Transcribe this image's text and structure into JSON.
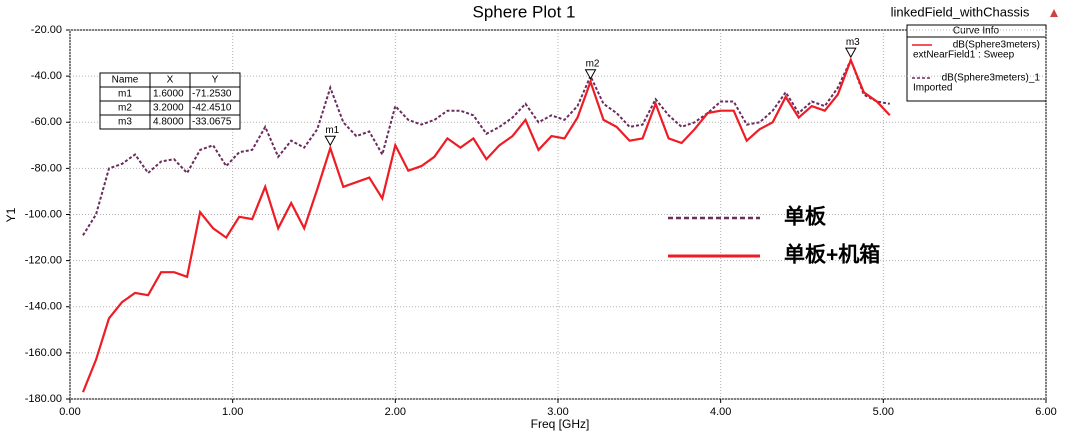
{
  "chart_data": {
    "type": "line",
    "title": "Sphere Plot 1",
    "window_label": "linkedField_withChassis",
    "x_label": "Freq [GHz]",
    "y_label": "Y1",
    "xlim": [
      0,
      6
    ],
    "ylim": [
      -180,
      -20
    ],
    "xticks": [
      {
        "value": 0,
        "label": "0.00"
      },
      {
        "value": 1,
        "label": "1.00"
      },
      {
        "value": 2,
        "label": "2.00"
      },
      {
        "value": 3,
        "label": "3.00"
      },
      {
        "value": 4,
        "label": "4.00"
      },
      {
        "value": 5,
        "label": "5.00"
      },
      {
        "value": 6,
        "label": "6.00"
      }
    ],
    "yticks": [
      {
        "value": -20,
        "label": "-20.00"
      },
      {
        "value": -40,
        "label": "-40.00"
      },
      {
        "value": -60,
        "label": "-60.00"
      },
      {
        "value": -80,
        "label": "-80.00"
      },
      {
        "value": -100,
        "label": "-100.00"
      },
      {
        "value": -120,
        "label": "-120.00"
      },
      {
        "value": -140,
        "label": "-140.00"
      },
      {
        "value": -160,
        "label": "-160.00"
      },
      {
        "value": -180,
        "label": "-180.00"
      }
    ],
    "grid": true,
    "x": [
      0.08,
      0.16,
      0.24,
      0.32,
      0.4,
      0.48,
      0.56,
      0.64,
      0.72,
      0.8,
      0.88,
      0.96,
      1.04,
      1.12,
      1.2,
      1.28,
      1.36,
      1.44,
      1.52,
      1.6,
      1.68,
      1.76,
      1.84,
      1.92,
      2.0,
      2.08,
      2.16,
      2.24,
      2.32,
      2.4,
      2.48,
      2.56,
      2.64,
      2.72,
      2.8,
      2.88,
      2.96,
      3.04,
      3.12,
      3.2,
      3.28,
      3.36,
      3.44,
      3.52,
      3.6,
      3.68,
      3.76,
      3.84,
      3.92,
      4.0,
      4.08,
      4.16,
      4.24,
      4.32,
      4.4,
      4.48,
      4.56,
      4.64,
      4.72,
      4.8,
      4.88,
      4.96,
      5.04
    ],
    "legend_title": "Curve Info",
    "series": [
      {
        "name": "dB(Sphere3meters)",
        "source": "extNearField1 : Sweep",
        "annotation": "单板+机箱",
        "color": "#ee1c24",
        "dashed": false,
        "values": [
          -177,
          -163,
          -145,
          -138,
          -134,
          -135,
          -125,
          -125,
          -127,
          -99,
          -106,
          -110,
          -101,
          -102,
          -88,
          -106,
          -95,
          -106,
          -89,
          -71.253,
          -88,
          -86,
          -84,
          -93,
          -70,
          -81,
          -79,
          -75,
          -67,
          -71,
          -67,
          -76,
          -70,
          -66,
          -59,
          -72,
          -66,
          -67,
          -58,
          -42.451,
          -59,
          -62,
          -68,
          -67,
          -52,
          -67,
          -69,
          -63,
          -56,
          -55,
          -55,
          -68,
          -63,
          -60,
          -49,
          -58,
          -53,
          -55,
          -48,
          -33.0675,
          -47,
          -51,
          -57
        ]
      },
      {
        "name": "dB(Sphere3meters)_1",
        "source": "Imported",
        "annotation": "单板",
        "color": "#6b2c5e",
        "dashed": true,
        "values": [
          -109,
          -100,
          -80,
          -78,
          -74,
          -82,
          -77,
          -76,
          -82,
          -72,
          -70,
          -79,
          -73,
          -72,
          -62,
          -75,
          -68,
          -71,
          -63,
          -45,
          -60,
          -66,
          -64,
          -74,
          -53,
          -59,
          -61,
          -59,
          -55,
          -55,
          -57,
          -65,
          -62,
          -58,
          -52,
          -60,
          -57,
          -59,
          -53,
          -40,
          -52,
          -56,
          -62,
          -61,
          -50,
          -57,
          -62,
          -60,
          -56,
          -51,
          -51,
          -61,
          -60,
          -55,
          -47,
          -56,
          -51,
          -53,
          -45,
          -33,
          -48,
          -51,
          -52
        ]
      }
    ],
    "marker_table_header": [
      "Name",
      "X",
      "Y"
    ],
    "markers": [
      {
        "name": "m1",
        "x": 1.6,
        "y": -71.253,
        "x_label": "1.6000",
        "y_label": "-71.2530"
      },
      {
        "name": "m2",
        "x": 3.2,
        "y": -42.451,
        "x_label": "3.2000",
        "y_label": "-42.4510"
      },
      {
        "name": "m3",
        "x": 4.8,
        "y": -33.0675,
        "x_label": "4.8000",
        "y_label": "-33.0675"
      }
    ]
  }
}
